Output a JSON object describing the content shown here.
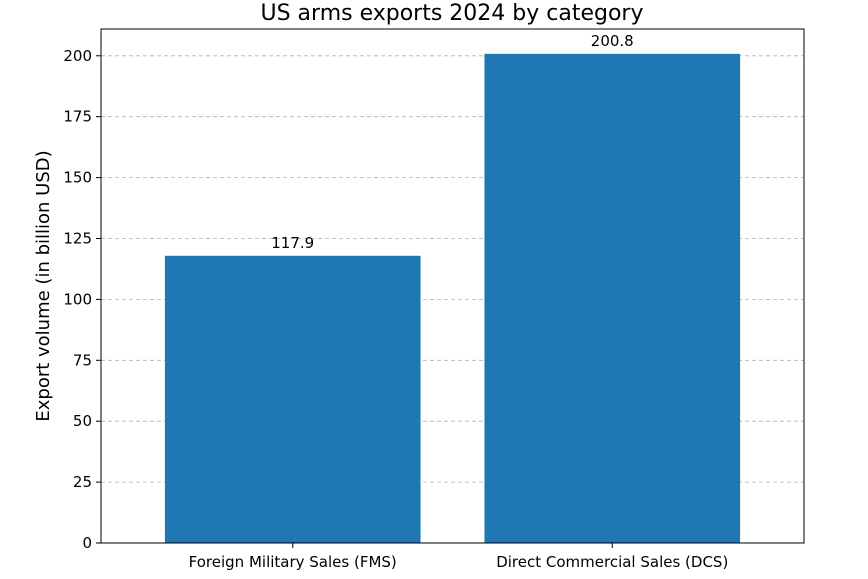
{
  "chart_data": {
    "type": "bar",
    "title": "US arms exports 2024 by category",
    "xlabel": "",
    "ylabel": "Export volume (in billion USD)",
    "categories": [
      "Foreign Military Sales (FMS)",
      "Direct Commercial Sales (DCS)"
    ],
    "values": [
      117.9,
      200.8
    ],
    "value_labels": [
      "117.9",
      "200.8"
    ],
    "ylim": [
      0,
      211
    ],
    "yticks": [
      0,
      25,
      50,
      75,
      100,
      125,
      150,
      175,
      200
    ],
    "grid": "y-dashed",
    "bar_color": "#1f77b4"
  }
}
